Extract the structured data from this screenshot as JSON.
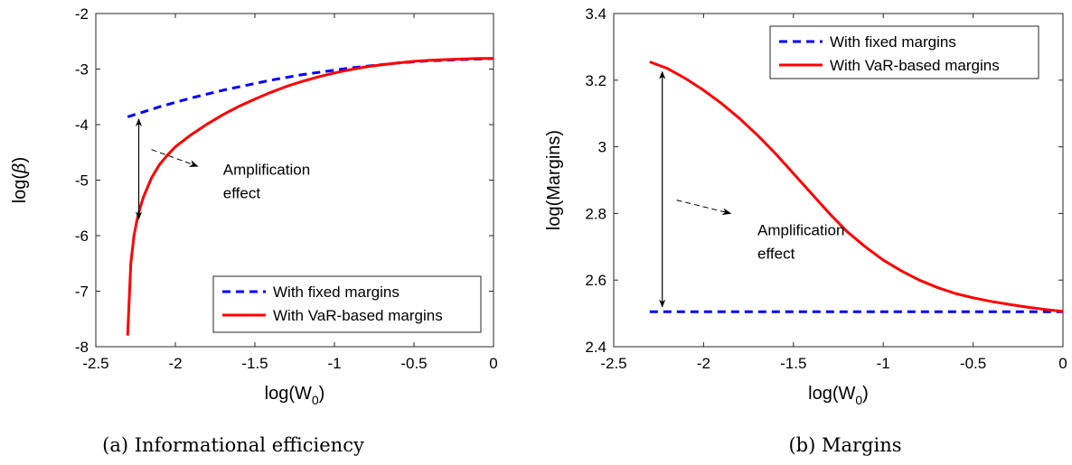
{
  "figures": [
    {
      "caption": "(a) Informational efficiency",
      "chart_data": {
        "type": "line",
        "xlabel": "log(W0)",
        "xlabel_main": "log(W",
        "xlabel_sub": "0",
        "xlabel_close": ")",
        "ylabel": "log(β)",
        "ylabel_main": "log(",
        "ylabel_greek": "β",
        "ylabel_close": ")",
        "xlim": [
          -2.5,
          0
        ],
        "ylim": [
          -8,
          -2
        ],
        "xticks": [
          -2.5,
          -2,
          -1.5,
          -1,
          -0.5,
          0
        ],
        "xtick_labels": [
          "-2.5",
          "-2",
          "-1.5",
          "-1",
          "-0.5",
          "0"
        ],
        "yticks": [
          -8,
          -7,
          -6,
          -5,
          -4,
          -3,
          -2
        ],
        "ytick_labels": [
          "-8",
          "-7",
          "-6",
          "-5",
          "-4",
          "-3",
          "-2"
        ],
        "grid": false,
        "legend_position": "bottom-right",
        "series": [
          {
            "name": "With fixed margins",
            "color": "#0000ff",
            "style": "dashed",
            "x": [
              -2.3,
              -2.2,
              -2.1,
              -2.0,
              -1.9,
              -1.8,
              -1.7,
              -1.6,
              -1.5,
              -1.4,
              -1.3,
              -1.2,
              -1.1,
              -1.0,
              -0.9,
              -0.8,
              -0.7,
              -0.6,
              -0.5,
              -0.4,
              -0.3,
              -0.2,
              -0.1,
              0.0
            ],
            "y": [
              -3.86,
              -3.77,
              -3.68,
              -3.6,
              -3.52,
              -3.45,
              -3.38,
              -3.32,
              -3.26,
              -3.2,
              -3.15,
              -3.1,
              -3.06,
              -3.02,
              -2.98,
              -2.95,
              -2.92,
              -2.89,
              -2.87,
              -2.85,
              -2.84,
              -2.83,
              -2.82,
              -2.81
            ]
          },
          {
            "name": "With VaR-based margins",
            "color": "#ff0000",
            "style": "solid",
            "x": [
              -2.3,
              -2.28,
              -2.26,
              -2.24,
              -2.22,
              -2.2,
              -2.15,
              -2.1,
              -2.05,
              -2.0,
              -1.9,
              -1.8,
              -1.7,
              -1.6,
              -1.5,
              -1.4,
              -1.3,
              -1.2,
              -1.1,
              -1.0,
              -0.9,
              -0.8,
              -0.7,
              -0.6,
              -0.5,
              -0.4,
              -0.3,
              -0.2,
              -0.1,
              0.0
            ],
            "y": [
              -7.8,
              -6.5,
              -6.0,
              -5.7,
              -5.48,
              -5.3,
              -4.96,
              -4.72,
              -4.55,
              -4.4,
              -4.18,
              -3.99,
              -3.82,
              -3.67,
              -3.54,
              -3.42,
              -3.31,
              -3.22,
              -3.14,
              -3.07,
              -3.01,
              -2.96,
              -2.92,
              -2.89,
              -2.86,
              -2.84,
              -2.83,
              -2.82,
              -2.81,
              -2.81
            ]
          }
        ],
        "annotations": {
          "text_line1": "Amplification",
          "text_line2": "effect",
          "text_pos": [
            -1.7,
            -4.9
          ],
          "double_arrow_x": -2.23,
          "double_arrow_y": [
            -3.9,
            -5.7
          ],
          "dashed_arrow_from": [
            -2.15,
            -4.45
          ],
          "dashed_arrow_to": [
            -1.86,
            -4.75
          ]
        }
      }
    },
    {
      "caption": "(b) Margins",
      "chart_data": {
        "type": "line",
        "xlabel": "log(W0)",
        "xlabel_main": "log(W",
        "xlabel_sub": "0",
        "xlabel_close": ")",
        "ylabel": "log(Margins)",
        "xlim": [
          -2.5,
          0
        ],
        "ylim": [
          2.4,
          3.4
        ],
        "xticks": [
          -2.5,
          -2,
          -1.5,
          -1,
          -0.5,
          0
        ],
        "xtick_labels": [
          "-2.5",
          "-2",
          "-1.5",
          "-1",
          "-0.5",
          "0"
        ],
        "yticks": [
          2.4,
          2.6,
          2.8,
          3.0,
          3.2,
          3.4
        ],
        "ytick_labels": [
          "2.4",
          "2.6",
          "2.8",
          "3",
          "3.2",
          "3.4"
        ],
        "grid": false,
        "legend_position": "top-right",
        "series": [
          {
            "name": "With fixed margins",
            "color": "#0000ff",
            "style": "dashed",
            "x": [
              -2.3,
              0.0
            ],
            "y": [
              2.505,
              2.505
            ]
          },
          {
            "name": "With VaR-based margins",
            "color": "#ff0000",
            "style": "solid",
            "x": [
              -2.3,
              -2.2,
              -2.1,
              -2.0,
              -1.9,
              -1.8,
              -1.7,
              -1.6,
              -1.5,
              -1.4,
              -1.3,
              -1.2,
              -1.1,
              -1.0,
              -0.9,
              -0.8,
              -0.7,
              -0.6,
              -0.5,
              -0.4,
              -0.3,
              -0.2,
              -0.1,
              0.0
            ],
            "y": [
              3.255,
              3.235,
              3.205,
              3.17,
              3.13,
              3.085,
              3.035,
              2.98,
              2.92,
              2.86,
              2.8,
              2.745,
              2.7,
              2.66,
              2.628,
              2.6,
              2.578,
              2.56,
              2.547,
              2.536,
              2.527,
              2.519,
              2.512,
              2.506
            ]
          }
        ],
        "annotations": {
          "text_line1": "Amplification",
          "text_line2": "effect",
          "text_pos": [
            -1.7,
            2.735
          ],
          "double_arrow_x": -2.23,
          "double_arrow_y": [
            3.225,
            2.52
          ],
          "dashed_arrow_from": [
            -2.15,
            2.84
          ],
          "dashed_arrow_to": [
            -1.85,
            2.8
          ]
        }
      }
    }
  ]
}
